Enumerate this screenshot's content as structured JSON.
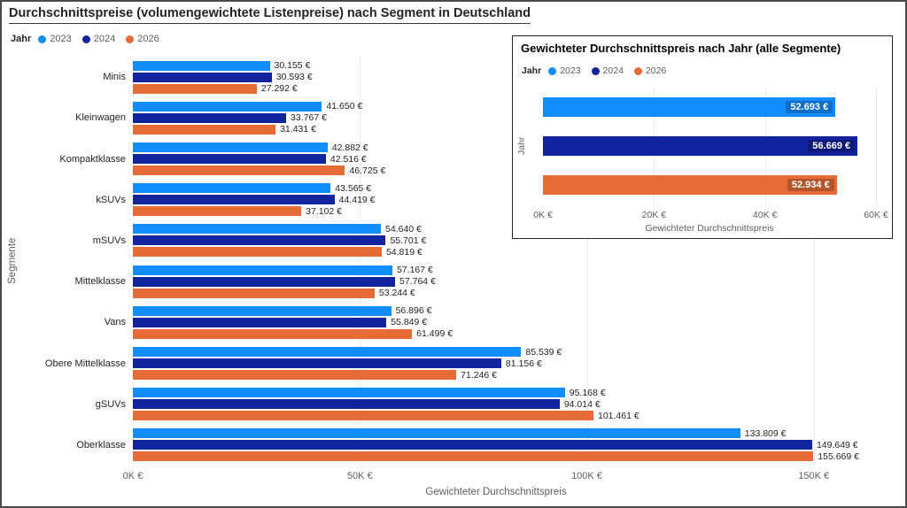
{
  "title": "Durchschnittspreise (volumengewichtete Listenpreise) nach Segment in Deutschland",
  "legend": {
    "label": "Jahr",
    "items": [
      {
        "label": "2023",
        "color": "#118DFF"
      },
      {
        "label": "2024",
        "color": "#12239E"
      },
      {
        "label": "2026",
        "color": "#E66C37"
      }
    ]
  },
  "chart_data": [
    {
      "type": "bar",
      "orientation": "horizontal_grouped",
      "title": "Durchschnittspreise (volumengewichtete Listenpreise) nach Segment in Deutschland",
      "xlabel": "Gewichteter Durchschnittspreis",
      "ylabel": "Segmente",
      "xlim": [
        0,
        160000
      ],
      "grid": true,
      "legend_position": "top-left",
      "categories": [
        "Minis",
        "Kleinwagen",
        "Kompaktklasse",
        "kSUVs",
        "mSUVs",
        "Mittelklasse",
        "Vans",
        "Obere Mittelklasse",
        "gSUVs",
        "Oberklasse"
      ],
      "series": [
        {
          "name": "2023",
          "color": "#118DFF",
          "values": [
            30155,
            41650,
            42882,
            43565,
            54640,
            57167,
            56896,
            85539,
            95168,
            133809
          ],
          "labels": [
            "30.155 €",
            "41.650 €",
            "42.882 €",
            "43.565 €",
            "54.640 €",
            "57.167 €",
            "56.896 €",
            "85.539 €",
            "95.168 €",
            "133.809 €"
          ]
        },
        {
          "name": "2024",
          "color": "#12239E",
          "values": [
            30593,
            33767,
            42516,
            44419,
            55701,
            57764,
            55849,
            81156,
            94014,
            149649
          ],
          "labels": [
            "30.593 €",
            "33.767 €",
            "42.516 €",
            "44.419 €",
            "55.701 €",
            "57.764 €",
            "55.849 €",
            "81.156 €",
            "94.014 €",
            "149.649 €"
          ]
        },
        {
          "name": "2026",
          "color": "#E66C37",
          "values": [
            27292,
            31431,
            46725,
            37102,
            54819,
            53244,
            61499,
            71246,
            101461,
            155669
          ],
          "labels": [
            "27.292 €",
            "31.431 €",
            "46.725 €",
            "37.102 €",
            "54.819 €",
            "53.244 €",
            "61.499 €",
            "71.246 €",
            "101.461 €",
            "155.669 €"
          ]
        }
      ],
      "xticks": [
        {
          "label": "0K €",
          "value": 0
        },
        {
          "label": "50K €",
          "value": 50000
        },
        {
          "label": "100K €",
          "value": 100000
        },
        {
          "label": "150K €",
          "value": 150000
        }
      ]
    },
    {
      "type": "bar",
      "orientation": "horizontal",
      "title": "Gewichteter Durchschnittspreis nach Jahr (alle Segmente)",
      "xlabel": "Gewichteter Durchschnittspreis",
      "ylabel": "Jahr",
      "xlim": [
        0,
        60000
      ],
      "grid": true,
      "legend_position": "top-left",
      "categories": [
        "2023",
        "2024",
        "2026"
      ],
      "values": [
        52693,
        56669,
        52934
      ],
      "value_labels": [
        "52.693 €",
        "56.669 €",
        "52.934 €"
      ],
      "colors": [
        "#118DFF",
        "#12239E",
        "#E66C37"
      ],
      "xticks": [
        {
          "label": "0K €",
          "value": 0
        },
        {
          "label": "20K €",
          "value": 20000
        },
        {
          "label": "40K €",
          "value": 40000
        },
        {
          "label": "60K €",
          "value": 60000
        }
      ]
    }
  ]
}
